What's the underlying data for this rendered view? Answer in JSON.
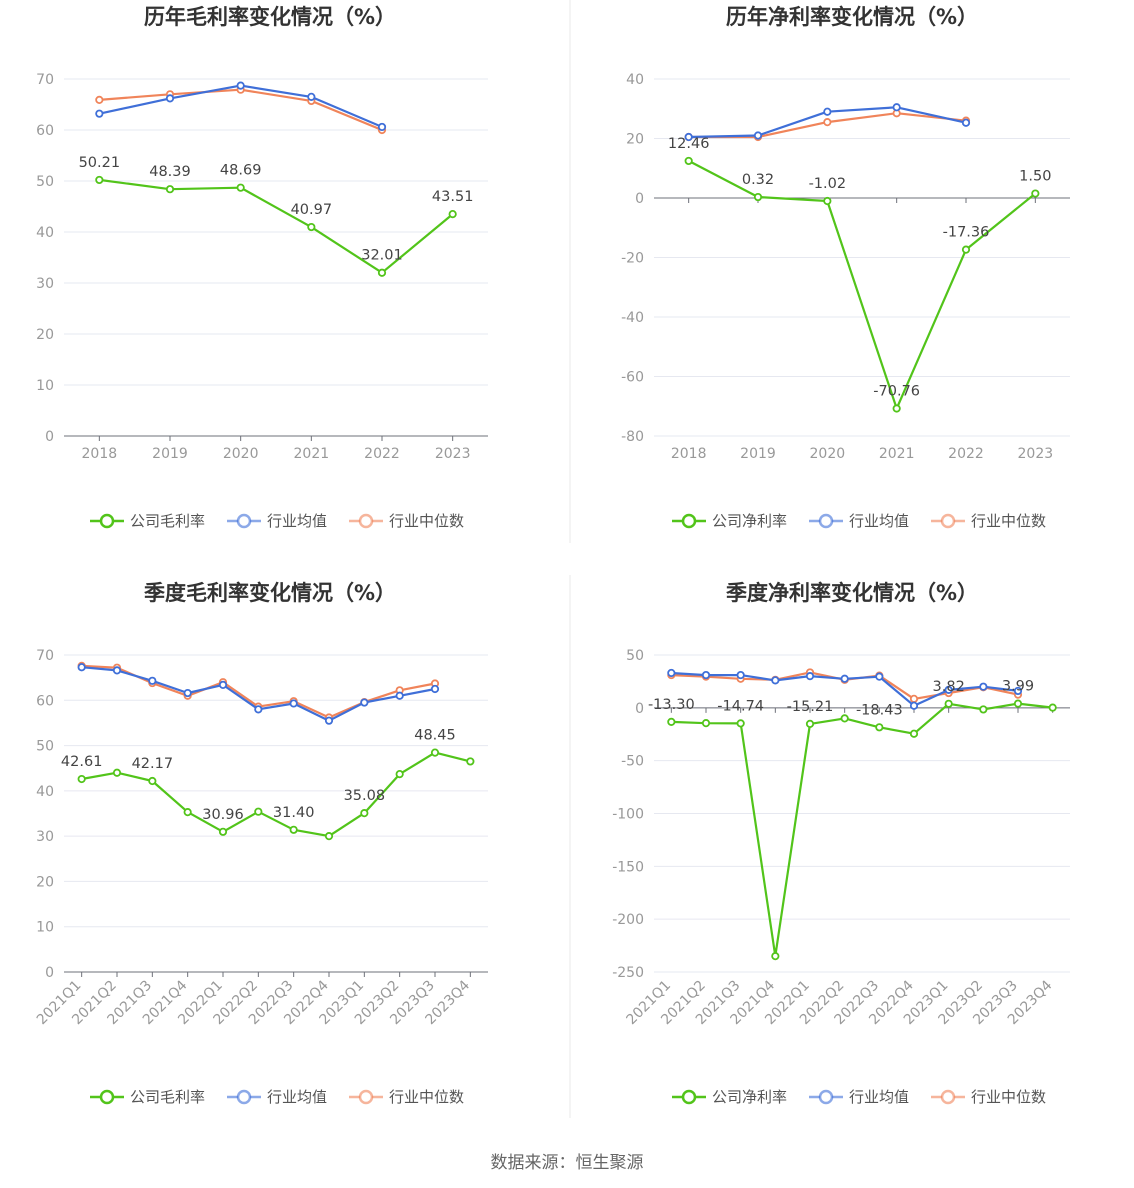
{
  "source": "数据来源：恒生聚源",
  "colors": {
    "company": "#52c41a",
    "avg": "#3f6fd8",
    "median": "#f0845a"
  },
  "chart_data": [
    {
      "type": "line",
      "title": "历年毛利率变化情况（%）",
      "categories": [
        "2018",
        "2019",
        "2020",
        "2021",
        "2022",
        "2023"
      ],
      "ylim": [
        0,
        70
      ],
      "yticks": [
        0,
        10,
        20,
        30,
        40,
        50,
        60,
        70
      ],
      "legend": [
        "公司毛利率",
        "行业均值",
        "行业中位数"
      ],
      "grid": true,
      "series": [
        {
          "name": "公司毛利率",
          "values": [
            50.21,
            48.39,
            48.69,
            40.97,
            32.01,
            43.51
          ],
          "labels": [
            "50.21",
            "48.39",
            "48.69",
            "40.97",
            "32.01",
            "43.51"
          ]
        },
        {
          "name": "行业均值",
          "values": [
            63.2,
            66.2,
            68.7,
            66.5,
            60.6,
            null
          ]
        },
        {
          "name": "行业中位数",
          "values": [
            65.9,
            67.0,
            67.9,
            65.7,
            60.0,
            null
          ]
        }
      ]
    },
    {
      "type": "line",
      "title": "历年净利率变化情况（%）",
      "categories": [
        "2018",
        "2019",
        "2020",
        "2021",
        "2022",
        "2023"
      ],
      "ylim": [
        -80,
        40
      ],
      "yticks": [
        -80,
        -60,
        -40,
        -20,
        0,
        20,
        40
      ],
      "legend": [
        "公司净利率",
        "行业均值",
        "行业中位数"
      ],
      "grid": true,
      "series": [
        {
          "name": "公司净利率",
          "values": [
            12.46,
            0.32,
            -1.02,
            -70.76,
            -17.36,
            1.5
          ],
          "labels": [
            "12.46",
            "0.32",
            "-1.02",
            "-70.76",
            "-17.36",
            "1.50"
          ]
        },
        {
          "name": "行业均值",
          "values": [
            20.5,
            21.0,
            29.0,
            30.5,
            25.3,
            null
          ]
        },
        {
          "name": "行业中位数",
          "values": [
            20.5,
            20.5,
            25.5,
            28.5,
            26.0,
            null
          ]
        }
      ]
    },
    {
      "type": "line",
      "title": "季度毛利率变化情况（%）",
      "categories": [
        "2021Q1",
        "2021Q2",
        "2021Q3",
        "2021Q4",
        "2022Q1",
        "2022Q2",
        "2022Q3",
        "2022Q4",
        "2023Q1",
        "2023Q2",
        "2023Q3",
        "2023Q4"
      ],
      "ylim": [
        0,
        70
      ],
      "yticks": [
        0,
        10,
        20,
        30,
        40,
        50,
        60,
        70
      ],
      "legend": [
        "公司毛利率",
        "行业均值",
        "行业中位数"
      ],
      "grid": true,
      "series": [
        {
          "name": "公司毛利率",
          "values": [
            42.61,
            44.0,
            42.17,
            35.3,
            30.96,
            35.4,
            31.4,
            30.0,
            35.08,
            43.7,
            48.45,
            46.5
          ],
          "labels": [
            "42.61",
            "",
            "42.17",
            "",
            "30.96",
            "",
            "31.40",
            "",
            "35.08",
            "",
            "48.45",
            ""
          ]
        },
        {
          "name": "行业均值",
          "values": [
            67.3,
            66.6,
            64.3,
            61.6,
            63.4,
            58.0,
            59.3,
            55.5,
            59.5,
            61.0,
            62.5,
            null
          ]
        },
        {
          "name": "行业中位数",
          "values": [
            67.6,
            67.2,
            63.8,
            61.0,
            64.0,
            58.6,
            59.8,
            56.2,
            59.6,
            62.2,
            63.7,
            null
          ]
        }
      ]
    },
    {
      "type": "line",
      "title": "季度净利率变化情况（%）",
      "categories": [
        "2021Q1",
        "2021Q2",
        "2021Q3",
        "2021Q4",
        "2022Q1",
        "2022Q2",
        "2022Q3",
        "2022Q4",
        "2023Q1",
        "2023Q2",
        "2023Q3",
        "2023Q4"
      ],
      "ylim": [
        -250,
        50
      ],
      "yticks": [
        -250,
        -200,
        -150,
        -100,
        -50,
        0,
        50
      ],
      "legend": [
        "公司净利率",
        "行业均值",
        "行业中位数"
      ],
      "grid": true,
      "series": [
        {
          "name": "公司净利率",
          "values": [
            -13.3,
            -14.5,
            -14.74,
            -235,
            -15.21,
            -10.0,
            -18.43,
            -24.5,
            3.82,
            -1.5,
            3.99,
            0.2
          ],
          "labels": [
            "-13.30",
            "",
            "-14.74",
            "",
            "-15.21",
            "",
            "-18.43",
            "",
            "3.82",
            "",
            "3.99",
            ""
          ]
        },
        {
          "name": "行业均值",
          "values": [
            33.0,
            31.0,
            31.0,
            26.0,
            30.0,
            27.5,
            29.5,
            2.0,
            17.0,
            20.0,
            16.0,
            null
          ]
        },
        {
          "name": "行业中位数",
          "values": [
            31.0,
            29.5,
            27.5,
            26.5,
            33.5,
            26.5,
            30.5,
            8.5,
            14.0,
            19.5,
            12.5,
            null
          ]
        }
      ]
    }
  ]
}
